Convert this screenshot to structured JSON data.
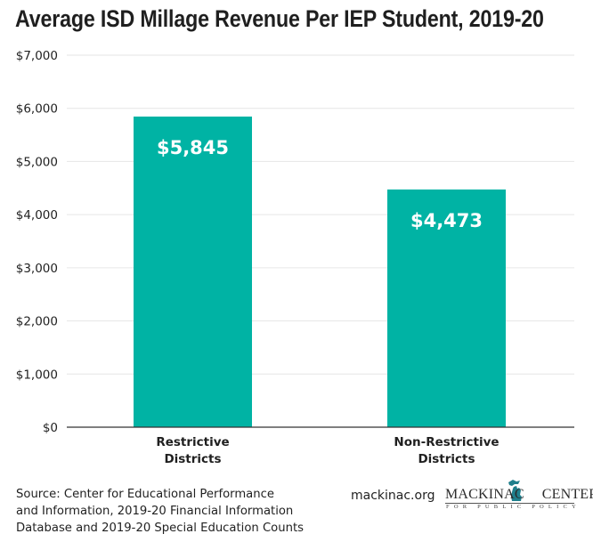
{
  "chart_data": {
    "type": "bar",
    "title": "Average ISD Millage Revenue Per IEP Student, 2019-20",
    "categories": [
      [
        "Restrictive",
        "Districts"
      ],
      [
        "Non-Restrictive",
        "Districts"
      ]
    ],
    "values": [
      5845,
      4473
    ],
    "data_labels": [
      "$5,845",
      "$4,473"
    ],
    "xlabel": "",
    "ylabel": "",
    "ylim": [
      0,
      7000
    ],
    "yticks": [
      0,
      1000,
      2000,
      3000,
      4000,
      5000,
      6000,
      7000
    ],
    "ytick_labels": [
      "$0",
      "$1,000",
      "$2,000",
      "$3,000",
      "$4,000",
      "$5,000",
      "$6,000",
      "$7,000"
    ],
    "grid": true,
    "legend": "none",
    "colors": {
      "bar": "#00B3A4",
      "grid": "#e6e6e6",
      "axis": "#333333",
      "data_label": "#ffffff"
    }
  },
  "footer": {
    "source_lines": [
      "Source: Center for Educational Performance",
      "and Information, 2019-20 Financial Information",
      "Database and 2019-20 Special Education Counts"
    ],
    "website": "mackinac.org",
    "logo": {
      "name_left": "MACKINAC",
      "name_right": "CENTER",
      "tagline": "FOR PUBLIC POLICY",
      "icon": "michigan-map-icon",
      "color": "#1f7f8c"
    }
  }
}
